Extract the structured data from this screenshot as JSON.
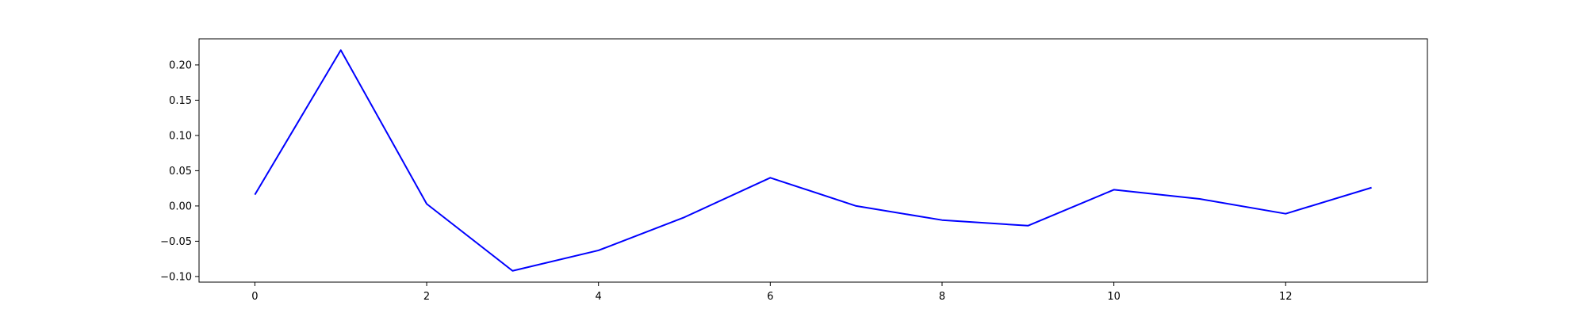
{
  "chart_data": {
    "type": "line",
    "title": "",
    "xlabel": "",
    "ylabel": "",
    "xlim": [
      -0.65,
      13.65
    ],
    "ylim": [
      -0.108,
      0.237
    ],
    "grid": false,
    "x_ticks": [
      0,
      2,
      4,
      6,
      8,
      10,
      12
    ],
    "x_tick_labels": [
      "0",
      "2",
      "4",
      "6",
      "8",
      "10",
      "12"
    ],
    "y_ticks": [
      -0.1,
      -0.05,
      0.0,
      0.05,
      0.1,
      0.15,
      0.2
    ],
    "y_tick_labels": [
      "−0.10",
      "−0.05",
      "0.00",
      "0.05",
      "0.10",
      "0.15",
      "0.20"
    ],
    "series": [
      {
        "color": "#0000ff",
        "x": [
          0,
          1,
          2,
          3,
          4,
          5,
          6,
          7,
          8,
          9,
          10,
          11,
          12,
          13
        ],
        "y": [
          0.016,
          0.221,
          0.003,
          -0.092,
          -0.063,
          -0.016,
          0.04,
          0.0,
          -0.02,
          -0.028,
          0.023,
          0.01,
          -0.011,
          0.026
        ]
      }
    ]
  }
}
